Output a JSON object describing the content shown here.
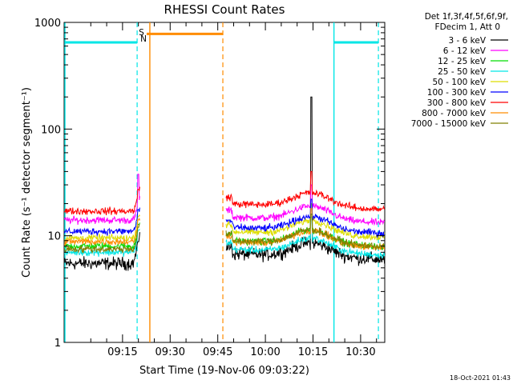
{
  "chart_data": {
    "type": "line",
    "title": "RHESSI Count Rates",
    "xlabel": "Start Time (19-Nov-06 09:03:22)",
    "ylabel": "Count Rate (s⁻¹ detector segment⁻¹)",
    "yscale": "log",
    "ylim": [
      1,
      1000
    ],
    "xlim": [
      "09:03:22",
      "10:44:30"
    ],
    "x_tick_labels": [
      "09:15",
      "09:30",
      "09:45",
      "10:00",
      "10:15",
      "10:30"
    ],
    "x_tick_values_min": [
      15,
      30,
      45,
      60,
      75,
      90
    ],
    "y_tick_labels": [
      "1",
      "10",
      "100",
      "1000"
    ],
    "y_tick_values": [
      1,
      10,
      100,
      1000
    ],
    "legend_header": [
      "Det 1f,3f,4f,5f,6f,9f,",
      "FDecim 1, Att 0"
    ],
    "series": [
      {
        "name": "3 - 6 keV",
        "color": "#000000",
        "pre_level": 5.5,
        "post_level": 6.8,
        "peak": 200
      },
      {
        "name": "6 - 12 keV",
        "color": "#ff00ff",
        "pre_level": 14.0,
        "post_level": 15.0,
        "peak": 30
      },
      {
        "name": "12 - 25 keV",
        "color": "#00dd00",
        "pre_level": 8.0,
        "post_level": 9.0,
        "peak": 20
      },
      {
        "name": "25 - 50 keV",
        "color": "#00e6e6",
        "pre_level": 7.0,
        "post_level": 7.5,
        "peak": 15
      },
      {
        "name": "50 - 100 keV",
        "color": "#dddd00",
        "pre_level": 9.5,
        "post_level": 11.0,
        "peak": 20
      },
      {
        "name": "100 - 300 keV",
        "color": "#0000ff",
        "pre_level": 11.0,
        "post_level": 12.0,
        "peak": 22
      },
      {
        "name": "300 - 800 keV",
        "color": "#ff0000",
        "pre_level": 17.0,
        "post_level": 20.0,
        "peak": 40
      },
      {
        "name": "800 - 7000 keV",
        "color": "#ff8c00",
        "pre_level": 8.8,
        "post_level": 8.8,
        "peak": 18
      },
      {
        "name": "7000 - 15000 keV",
        "color": "#808000",
        "pre_level": 7.5,
        "post_level": 9.0,
        "peak": 16
      }
    ],
    "data_segments_min": [
      [
        -3.4,
        20.6
      ],
      [
        47.6,
        97.6
      ]
    ],
    "event_bars": [
      {
        "label": "night",
        "color": "#00e6e6",
        "from_min": -3.4,
        "to_min": 19.6,
        "level": 650
      },
      {
        "label": "saa",
        "color": "#ff8c00",
        "from_min": 22.6,
        "to_min": 46.6,
        "level": 780
      },
      {
        "label": "night",
        "color": "#00e6e6",
        "from_min": 81.6,
        "to_min": 95.6,
        "level": 650
      }
    ],
    "event_lines_solid_min": [
      -3.4,
      23.6,
      81.6
    ],
    "event_lines_dashed_min": [
      19.6,
      46.6,
      95.6
    ],
    "markers": [
      {
        "text": "S",
        "color": "#ff8c00"
      },
      {
        "text": "N",
        "color": "#00e6e6"
      }
    ],
    "flare_time_min": 74.5,
    "legend_position": "top-right",
    "grid": false
  },
  "footer": {
    "timestamp": "18-Oct-2021 01:43"
  }
}
